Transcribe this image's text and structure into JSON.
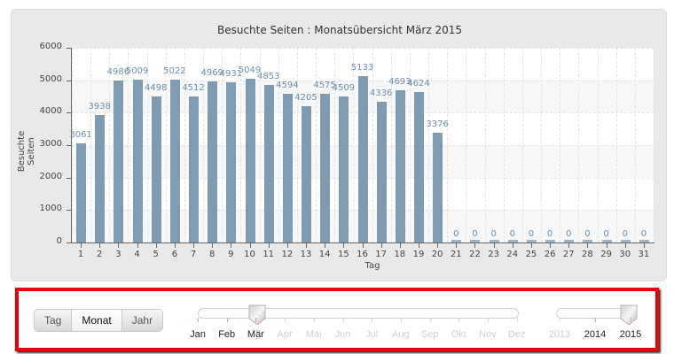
{
  "chart_data": {
    "type": "bar",
    "title": "Besuchte Seiten : Monatsübersicht März 2015",
    "xlabel": "Tag",
    "ylabel": "Besuchte Seiten",
    "ylim": [
      0,
      6000
    ],
    "yticks": [
      0,
      1000,
      2000,
      3000,
      4000,
      5000,
      6000
    ],
    "grid": true,
    "legend": "none",
    "categories": [
      "1",
      "2",
      "3",
      "4",
      "5",
      "6",
      "7",
      "8",
      "9",
      "10",
      "11",
      "12",
      "13",
      "14",
      "15",
      "16",
      "17",
      "18",
      "19",
      "20",
      "21",
      "22",
      "23",
      "24",
      "25",
      "26",
      "27",
      "28",
      "29",
      "30",
      "31"
    ],
    "values": [
      3061,
      3938,
      4986,
      5009,
      4498,
      5022,
      4512,
      4969,
      4931,
      5049,
      4853,
      4594,
      4205,
      4575,
      4509,
      5133,
      4336,
      4693,
      4624,
      3376,
      0,
      0,
      0,
      0,
      0,
      0,
      0,
      0,
      0,
      0,
      0
    ],
    "bar_color": "#7e9bb2",
    "label_color": "#6d90ad"
  },
  "controls": {
    "view_buttons": [
      {
        "label": "Tag",
        "active": false
      },
      {
        "label": "Monat",
        "active": true
      },
      {
        "label": "Jahr",
        "active": false
      }
    ],
    "month_slider": {
      "selected": "Mär",
      "labels": [
        {
          "label": "Jan",
          "enabled": true
        },
        {
          "label": "Feb",
          "enabled": true
        },
        {
          "label": "Mär",
          "enabled": true
        },
        {
          "label": "Apr",
          "enabled": false
        },
        {
          "label": "Mai",
          "enabled": false
        },
        {
          "label": "Jun",
          "enabled": false
        },
        {
          "label": "Jul",
          "enabled": false
        },
        {
          "label": "Aug",
          "enabled": false
        },
        {
          "label": "Sep",
          "enabled": false
        },
        {
          "label": "Okt",
          "enabled": false
        },
        {
          "label": "Nov",
          "enabled": false
        },
        {
          "label": "Dez",
          "enabled": false
        }
      ]
    },
    "year_slider": {
      "selected": "2015",
      "labels": [
        {
          "label": "2013",
          "enabled": false
        },
        {
          "label": "2014",
          "enabled": true
        },
        {
          "label": "2015",
          "enabled": true
        }
      ]
    },
    "highlight_color": "#ee0000"
  }
}
